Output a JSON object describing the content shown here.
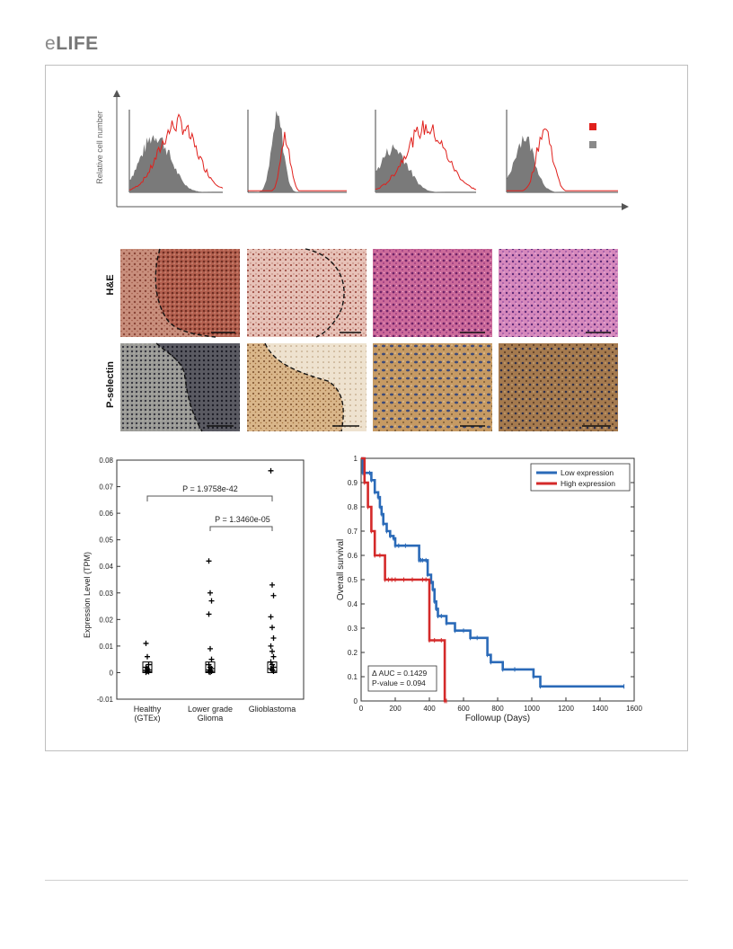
{
  "header": {
    "logo_prefix": "e",
    "logo_main": "LIFE"
  },
  "panel_flow": {
    "ylabel": "Relative cell number",
    "legend_colors": [
      "#e0201c",
      "#8a8a8a"
    ],
    "series_colors": {
      "stain": "#e0201c",
      "control": "#7a7a7a"
    }
  },
  "panel_histology": {
    "row_labels": [
      "H&E",
      "P-selectin"
    ]
  },
  "chart_data": [
    {
      "type": "scatter",
      "xlabel": "",
      "ylabel": "Expression Level (TPM)",
      "categories": [
        "Healthy\n(GTEx)",
        "Lower grade\nGlioma",
        "Glioblastoma"
      ],
      "category_lines": [
        [
          "Healthy",
          "(GTEx)"
        ],
        [
          "Lower grade",
          "Glioma"
        ],
        [
          "Glioblastoma"
        ]
      ],
      "ylim": [
        -0.01,
        0.08
      ],
      "yticks": [
        "-0.01",
        "0",
        "0.01",
        "0.02",
        "0.03",
        "0.04",
        "0.05",
        "0.06",
        "0.07",
        "0.08"
      ],
      "series": [
        {
          "values": [
            0.011,
            0.006,
            0.003,
            0.002,
            0.0015,
            0.001,
            0.0008,
            0.0005,
            0.0003,
            0.0001
          ]
        },
        {
          "values": [
            0.042,
            0.03,
            0.027,
            0.022,
            0.009,
            0.005,
            0.003,
            0.002,
            0.0015,
            0.001,
            0.0008,
            0.0005,
            0.0003,
            0.0001
          ]
        },
        {
          "values": [
            0.076,
            0.033,
            0.029,
            0.021,
            0.017,
            0.013,
            0.01,
            0.008,
            0.006,
            0.004,
            0.003,
            0.002,
            0.0015,
            0.001,
            0.0005
          ]
        }
      ],
      "annotations": [
        "P = 1.9758e-42",
        "P = 1.3460e-05"
      ]
    },
    {
      "type": "line",
      "xlabel": "Followup (Days)",
      "ylabel": "Overall survival",
      "xlim": [
        0,
        1600
      ],
      "ylim": [
        0,
        1
      ],
      "xticks": [
        "0",
        "200",
        "400",
        "600",
        "800",
        "1000",
        "1200",
        "1400",
        "1600"
      ],
      "yticks": [
        "0",
        "0.1",
        "0.2",
        "0.3",
        "0.4",
        "0.5",
        "0.6",
        "0.7",
        "0.8",
        "0.9",
        "1"
      ],
      "series": [
        {
          "name": "Low expression",
          "color": "#2a6ab8",
          "x": [
            0,
            10,
            50,
            60,
            80,
            100,
            110,
            120,
            130,
            150,
            170,
            190,
            200,
            220,
            260,
            340,
            350,
            360,
            380,
            390,
            410,
            420,
            430,
            440,
            450,
            470,
            500,
            550,
            600,
            640,
            680,
            740,
            760,
            830,
            900,
            1010,
            1050,
            1540
          ],
          "y": [
            1,
            0.94,
            0.94,
            0.91,
            0.86,
            0.84,
            0.8,
            0.77,
            0.73,
            0.7,
            0.68,
            0.67,
            0.64,
            0.64,
            0.64,
            0.58,
            0.58,
            0.58,
            0.58,
            0.52,
            0.49,
            0.46,
            0.41,
            0.38,
            0.35,
            0.35,
            0.32,
            0.29,
            0.29,
            0.26,
            0.26,
            0.19,
            0.16,
            0.13,
            0.13,
            0.1,
            0.06,
            0.06
          ]
        },
        {
          "name": "High expression",
          "color": "#d42a2a",
          "x": [
            0,
            20,
            40,
            60,
            80,
            110,
            140,
            160,
            180,
            200,
            250,
            300,
            360,
            380,
            400,
            430,
            470,
            490,
            500
          ],
          "y": [
            1,
            0.9,
            0.8,
            0.7,
            0.6,
            0.6,
            0.5,
            0.5,
            0.5,
            0.5,
            0.5,
            0.5,
            0.5,
            0.5,
            0.25,
            0.25,
            0.25,
            0.0,
            0.0
          ]
        }
      ],
      "annotations": [
        "Δ AUC = 0.1429",
        "P-value =  0.094"
      ],
      "legend_position": "top-right"
    }
  ]
}
